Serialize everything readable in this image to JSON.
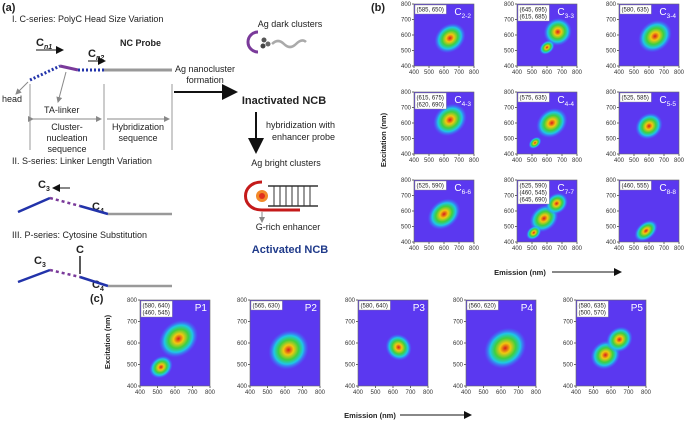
{
  "panel_a": {
    "label": "(a)",
    "c_series_title": "I. C-series: PolyC Head Size Variation",
    "c_n1": {
      "base": "C",
      "sub": "n1"
    },
    "c_n2": {
      "base": "C",
      "sub": "n2"
    },
    "probe_label": "NC Probe",
    "head_label": "head",
    "linker_label": "TA-linker",
    "cluster_seq": [
      "Cluster-",
      "nucleation",
      "sequence"
    ],
    "hybrid_seq": [
      "Hybridization",
      "sequence"
    ],
    "formation": [
      "Ag nanocluster",
      "formation"
    ],
    "dark_clusters": "Ag dark clusters",
    "inactivated": "Inactivated NCB",
    "hybridization_step": [
      "hybridization with",
      "enhancer probe"
    ],
    "bright_clusters": "Ag bright clusters",
    "enhancer": "G-rich enhancer",
    "activated": "Activated NCB",
    "s_series_title": "II. S-series: Linker Length Variation",
    "s_c3": {
      "base": "C",
      "sub": "3"
    },
    "s_c4": {
      "base": "C",
      "sub": "4"
    },
    "p_series_title": "III. P-series: Cytosine Substitution",
    "p_c": "C",
    "p_c3": {
      "base": "C",
      "sub": "3"
    },
    "p_c4": {
      "base": "C",
      "sub": "4"
    }
  },
  "panel_b": {
    "label": "(b)",
    "y_axis_label": "Excitation (nm)",
    "x_axis_label": "Emission (nm)",
    "ticks": [
      400,
      500,
      600,
      700,
      800
    ],
    "plots": [
      {
        "name": {
          "base": "C",
          "sub": "2-2"
        },
        "peaks": [
          "(585, 650)"
        ]
      },
      {
        "name": {
          "base": "C",
          "sub": "3-3"
        },
        "peaks": [
          "(645, 695)",
          "(615, 685)"
        ]
      },
      {
        "name": {
          "base": "C",
          "sub": "3-4"
        },
        "peaks": [
          "(580, 635)"
        ]
      },
      {
        "name": {
          "base": "C",
          "sub": "4-3"
        },
        "peaks": [
          "(615, 675)",
          "(620, 690)"
        ]
      },
      {
        "name": {
          "base": "C",
          "sub": "4-4"
        },
        "peaks": [
          "(575, 635)"
        ]
      },
      {
        "name": {
          "base": "C",
          "sub": "5-5"
        },
        "peaks": [
          "(525, 585)"
        ]
      },
      {
        "name": {
          "base": "C",
          "sub": "6-6"
        },
        "peaks": [
          "(525, 590)"
        ]
      },
      {
        "name": {
          "base": "C",
          "sub": "7-7"
        },
        "peaks": [
          "(525, 590)",
          "(460, 545)",
          "(645, 690)"
        ]
      },
      {
        "name": {
          "base": "C",
          "sub": "8-8"
        },
        "peaks": [
          "(460, 555)"
        ]
      }
    ]
  },
  "panel_c": {
    "label": "(c)",
    "y_axis_label": "Excitation (nm)",
    "x_axis_label": "Emission (nm)",
    "ticks": [
      400,
      500,
      600,
      700,
      800
    ],
    "plots": [
      {
        "name": "P1",
        "peaks": [
          "(580, 640)",
          "(460, 545)"
        ]
      },
      {
        "name": "P2",
        "peaks": [
          "(565, 630)"
        ]
      },
      {
        "name": "P3",
        "peaks": [
          "(580, 640)"
        ]
      },
      {
        "name": "P4",
        "peaks": [
          "(560, 620)"
        ]
      },
      {
        "name": "P5",
        "peaks": [
          "(580, 635)",
          "(500, 570)"
        ]
      }
    ]
  }
}
